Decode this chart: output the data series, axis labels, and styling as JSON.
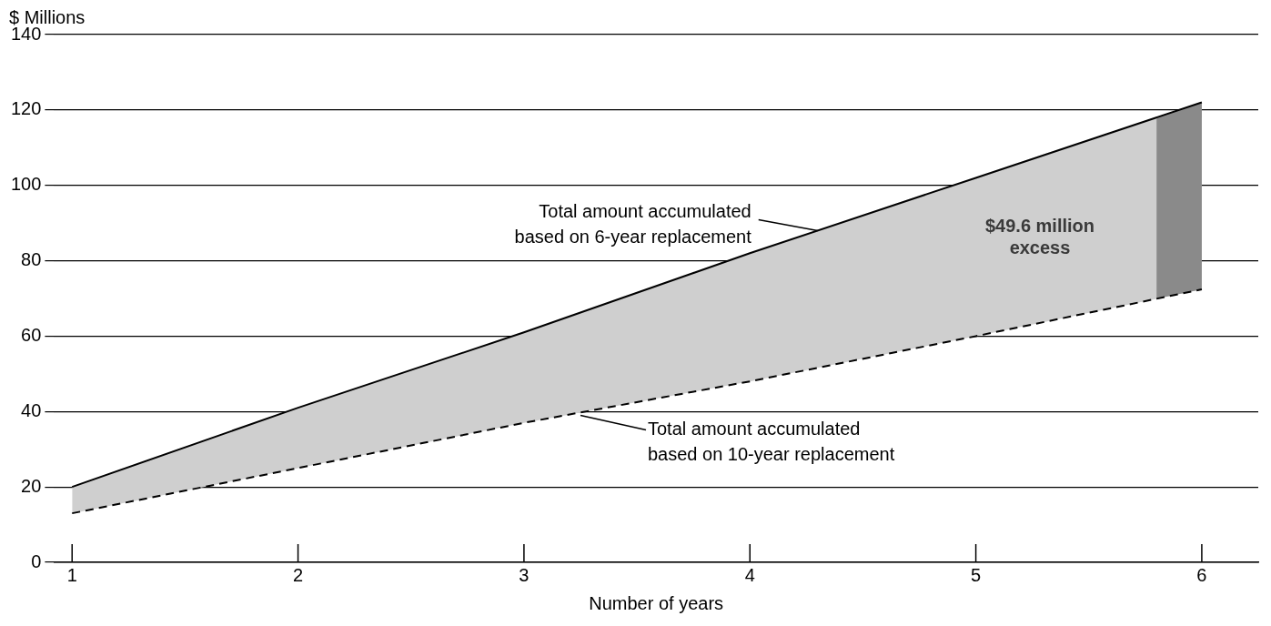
{
  "chart_data": {
    "type": "area",
    "xlabel": "Number of years",
    "ylabel": "$ Millions",
    "x": [
      1,
      2,
      3,
      4,
      5,
      6
    ],
    "series": [
      {
        "color": "#000000",
        "values": [
          20,
          41,
          61,
          82,
          102,
          122
        ]
      },
      {
        "type": "line",
        "color": "#000000",
        "line_style": "dashed",
        "values": [
          13,
          25,
          37,
          48,
          60,
          72.4
        ]
      }
    ],
    "bands": [
      {
        "axis": "x",
        "from": 5.8,
        "to": 6,
        "color": "#8a8a8a"
      }
    ],
    "annotations": [
      {
        "text": "Total amount accumulated\nbased on 6-year replacement",
        "x": 4.3,
        "y": 88
      },
      {
        "text": "Total amount accumulated\nbased on 10-year replacement",
        "x": 3.25,
        "y": 39
      },
      "$49.6 million\nexcess"
    ],
    "xlim": [
      0.92,
      6.25
    ],
    "xticks": [
      1,
      2,
      3,
      4,
      5,
      6
    ],
    "ylim": [
      0,
      140
    ],
    "yticks": [
      0,
      20,
      40,
      60,
      80,
      100,
      120,
      140
    ],
    "grid": "y",
    "legend": false
  }
}
